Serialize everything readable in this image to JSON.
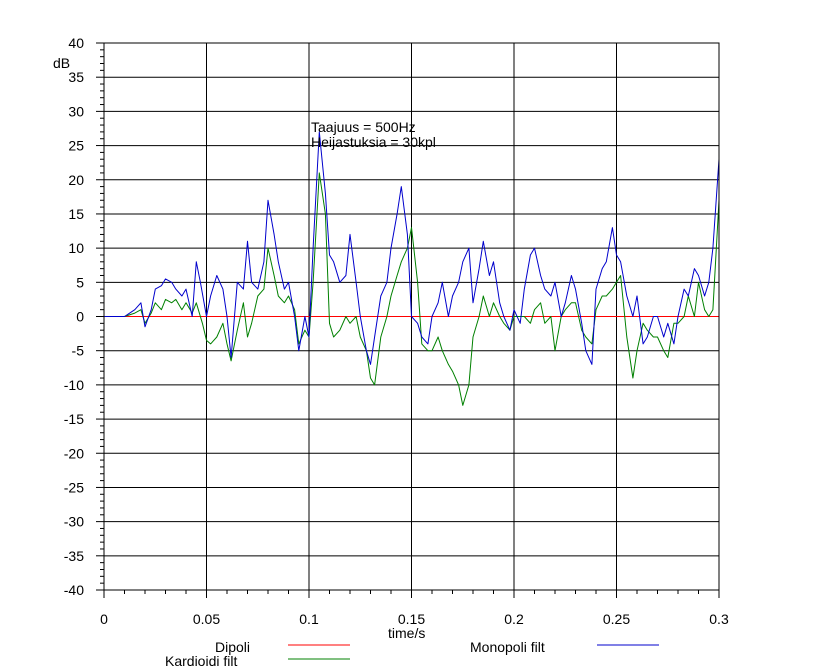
{
  "chart_data": {
    "type": "line",
    "title": "",
    "xlabel": "time/s",
    "ylabel": "dB",
    "xlim": [
      0,
      0.3
    ],
    "ylim": [
      -40,
      40
    ],
    "xticks": [
      0,
      0.05,
      0.1,
      0.15,
      0.2,
      0.25,
      0.3
    ],
    "xtick_labels": [
      "0",
      "0.05",
      "0.1",
      "0.15",
      "0.2",
      "0.25",
      "0.3"
    ],
    "yticks": [
      40,
      35,
      30,
      25,
      20,
      15,
      10,
      5,
      0,
      -5,
      -10,
      -15,
      -20,
      -25,
      -30,
      -35,
      -40
    ],
    "ytick_labels": [
      "40",
      "35",
      "30",
      "25",
      "20",
      "15",
      "10",
      "5",
      "0",
      "-5",
      "-10",
      "-15",
      "-20",
      "-25",
      "-30",
      "-35",
      "-40"
    ],
    "grid": true,
    "annotations": [
      "Taajuus = 500Hz",
      "Heijastuksia = 30kpl"
    ],
    "legend": [
      {
        "label": "Dipoli",
        "color": "#ff0000"
      },
      {
        "label": "Kardioidi filt",
        "color": "#008000"
      },
      {
        "label": "Monopoli filt",
        "color": "#0000cc"
      }
    ],
    "series": [
      {
        "name": "Dipoli",
        "color": "#ff0000",
        "x": [
          0,
          0.3
        ],
        "y": [
          0,
          0
        ]
      },
      {
        "name": "Kardioidi filt",
        "color": "#008000",
        "x": [
          0,
          0.01,
          0.015,
          0.018,
          0.02,
          0.023,
          0.025,
          0.028,
          0.03,
          0.033,
          0.035,
          0.038,
          0.04,
          0.043,
          0.045,
          0.048,
          0.05,
          0.052,
          0.055,
          0.058,
          0.06,
          0.062,
          0.065,
          0.068,
          0.07,
          0.072,
          0.075,
          0.078,
          0.08,
          0.083,
          0.085,
          0.088,
          0.09,
          0.093,
          0.095,
          0.098,
          0.1,
          0.102,
          0.105,
          0.108,
          0.11,
          0.112,
          0.115,
          0.118,
          0.12,
          0.123,
          0.125,
          0.128,
          0.13,
          0.132,
          0.135,
          0.138,
          0.14,
          0.143,
          0.145,
          0.148,
          0.15,
          0.153,
          0.155,
          0.158,
          0.16,
          0.163,
          0.165,
          0.168,
          0.17,
          0.173,
          0.175,
          0.178,
          0.18,
          0.183,
          0.185,
          0.188,
          0.19,
          0.193,
          0.195,
          0.198,
          0.2,
          0.203,
          0.205,
          0.208,
          0.21,
          0.213,
          0.215,
          0.218,
          0.22,
          0.223,
          0.225,
          0.228,
          0.23,
          0.233,
          0.235,
          0.238,
          0.24,
          0.243,
          0.245,
          0.248,
          0.25,
          0.252,
          0.255,
          0.258,
          0.26,
          0.263,
          0.265,
          0.268,
          0.27,
          0.273,
          0.275,
          0.278,
          0.28,
          0.283,
          0.285,
          0.288,
          0.29,
          0.293,
          0.295,
          0.297,
          0.3
        ],
        "y": [
          0,
          0,
          0.5,
          1,
          -1,
          0.5,
          2,
          1,
          2.5,
          2,
          2.5,
          1,
          2,
          0.5,
          2,
          -1,
          -3.5,
          -4,
          -3,
          -1,
          -4,
          -6.5,
          -2,
          2,
          -3,
          -1,
          3,
          4,
          10,
          6,
          3,
          2,
          3,
          1,
          -4,
          -2,
          -3,
          5,
          21,
          15,
          -1,
          -3,
          -2,
          0,
          -1,
          0,
          -3,
          -5,
          -9,
          -10,
          -3,
          0,
          3,
          6,
          8,
          10,
          13,
          5,
          -4,
          -5,
          -5,
          -3,
          -5,
          -7,
          -8,
          -10,
          -13,
          -10,
          -3,
          0,
          3,
          0,
          2,
          0,
          -1,
          -2,
          0,
          0,
          0,
          -1,
          1,
          2,
          -1,
          0,
          -5,
          0,
          1,
          2,
          2,
          -2,
          -3,
          -4,
          1,
          3,
          3,
          4,
          5,
          6,
          -3,
          -9,
          -5,
          -1,
          -2,
          -3,
          -3,
          -5,
          -6,
          -1,
          -1,
          0,
          3,
          0,
          5,
          1,
          0,
          1,
          17
        ]
      },
      {
        "name": "Monopoli filt",
        "color": "#0000cc",
        "x": [
          0,
          0.01,
          0.015,
          0.018,
          0.02,
          0.023,
          0.025,
          0.028,
          0.03,
          0.033,
          0.035,
          0.038,
          0.04,
          0.043,
          0.045,
          0.047,
          0.05,
          0.052,
          0.055,
          0.058,
          0.06,
          0.062,
          0.065,
          0.068,
          0.07,
          0.072,
          0.075,
          0.078,
          0.08,
          0.083,
          0.085,
          0.088,
          0.09,
          0.093,
          0.095,
          0.098,
          0.1,
          0.102,
          0.105,
          0.108,
          0.11,
          0.112,
          0.115,
          0.118,
          0.12,
          0.123,
          0.125,
          0.128,
          0.13,
          0.132,
          0.135,
          0.138,
          0.14,
          0.143,
          0.145,
          0.148,
          0.15,
          0.153,
          0.155,
          0.158,
          0.16,
          0.163,
          0.165,
          0.168,
          0.17,
          0.173,
          0.175,
          0.178,
          0.18,
          0.183,
          0.185,
          0.188,
          0.19,
          0.193,
          0.195,
          0.198,
          0.2,
          0.203,
          0.205,
          0.208,
          0.21,
          0.213,
          0.215,
          0.218,
          0.22,
          0.223,
          0.225,
          0.228,
          0.23,
          0.233,
          0.235,
          0.238,
          0.24,
          0.243,
          0.245,
          0.248,
          0.25,
          0.252,
          0.255,
          0.258,
          0.26,
          0.263,
          0.265,
          0.268,
          0.27,
          0.273,
          0.275,
          0.278,
          0.28,
          0.283,
          0.285,
          0.288,
          0.29,
          0.293,
          0.295,
          0.297,
          0.3
        ],
        "y": [
          0,
          0,
          1,
          2,
          -1.5,
          1,
          4,
          4.5,
          5.5,
          5,
          4,
          3,
          4,
          0,
          8,
          5,
          0,
          3,
          6,
          4,
          0,
          -6,
          5,
          4,
          11,
          5,
          4,
          8,
          17,
          12,
          8,
          4,
          5,
          0,
          -5,
          0,
          -3,
          10,
          27,
          18,
          9,
          8,
          5,
          6,
          12,
          5,
          0,
          -5,
          -7,
          -3,
          3,
          5,
          10,
          15,
          19,
          12,
          0,
          -1,
          -3,
          -4,
          0,
          2,
          5,
          0,
          3,
          5,
          8,
          10,
          2,
          7,
          11,
          6,
          8,
          2,
          0,
          -2,
          1,
          -1,
          4,
          9,
          10,
          6,
          4,
          3,
          5,
          0,
          2,
          6,
          4,
          -1,
          -5,
          -7,
          4,
          7,
          8,
          13,
          9,
          8,
          3,
          0,
          3,
          -4,
          -3,
          0,
          0,
          -3,
          -1,
          -4,
          0,
          4,
          3,
          7,
          6,
          3,
          5,
          10,
          23
        ]
      }
    ]
  }
}
